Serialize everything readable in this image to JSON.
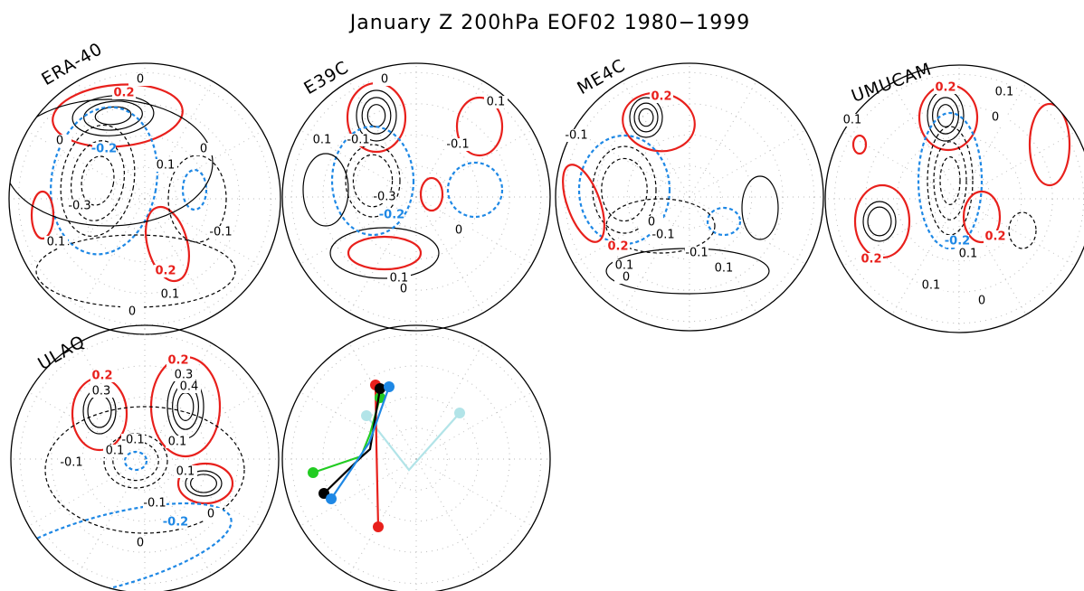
{
  "title": "January Z 200hPa EOF02 1980−1999",
  "panels": [
    {
      "label": "ERA-40",
      "contour_labels": [
        "0",
        "0.2",
        "-0.2",
        "0",
        "0.1",
        "0",
        "-0.3",
        "0.1",
        "-0.1",
        "0.2",
        "0.1",
        "0"
      ]
    },
    {
      "label": "E39C",
      "contour_labels": [
        "0",
        "0.1",
        "-0.1",
        "0.1",
        "-0.1",
        "-0.3",
        "-0.2",
        "0",
        "0.1",
        "0"
      ]
    },
    {
      "label": "ME4C",
      "contour_labels": [
        "0.2",
        "-0.1",
        "0",
        "-0.1",
        "-0.1",
        "0.2",
        "0.1",
        "0",
        "0.1"
      ]
    },
    {
      "label": "UMUCAM",
      "contour_labels": [
        "0.2",
        "0.1",
        "0.1",
        "0",
        "-0.2",
        "0.2",
        "0.1",
        "0.2",
        "0.1",
        "0"
      ]
    },
    {
      "label": "ULAQ",
      "contour_labels": [
        "0.2",
        "0.3",
        "0.2",
        "0.3",
        "0.4",
        "-0.1",
        "0.1",
        "0.1",
        "0.1",
        "-0.1",
        "-0.1",
        "0",
        "-0.2",
        "0"
      ]
    }
  ]
}
